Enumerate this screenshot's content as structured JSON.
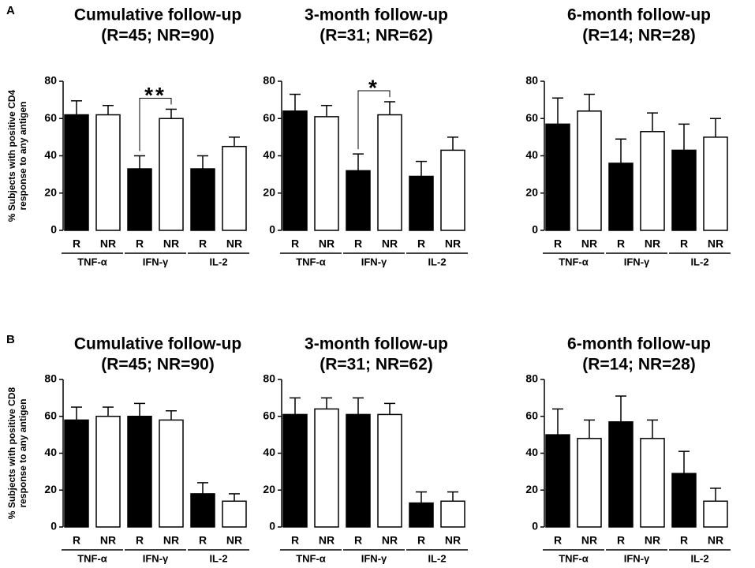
{
  "chart_data": [
    {
      "type": "bar",
      "panel": "A",
      "title": "Cumulative follow-up",
      "subtitle": "(R=45; NR=90)",
      "ylabel": [
        "% Subjects with positive CD4",
        "response to any antigen"
      ],
      "groups": [
        "TNF-α",
        "IFN-γ",
        "IL-2"
      ],
      "ylim": [
        0,
        80
      ],
      "yticks": [
        0,
        20,
        40,
        60,
        80
      ],
      "series": [
        {
          "name": "R",
          "color": "#000000",
          "values": [
            62,
            33,
            33
          ],
          "errors": [
            7.5,
            7,
            7
          ]
        },
        {
          "name": "NR",
          "color": "#ffffff",
          "values": [
            62,
            60,
            45
          ],
          "errors": [
            5,
            5,
            5
          ]
        }
      ],
      "annotation": {
        "text": "**",
        "group": "IFN-γ"
      }
    },
    {
      "type": "bar",
      "title": "3-month follow-up",
      "subtitle": "(R=31; NR=62)",
      "groups": [
        "TNF-α",
        "IFN-γ",
        "IL-2"
      ],
      "ylim": [
        0,
        80
      ],
      "yticks": [
        0,
        20,
        40,
        60,
        80
      ],
      "series": [
        {
          "name": "R",
          "color": "#000000",
          "values": [
            64,
            32,
            29
          ],
          "errors": [
            9,
            9,
            8
          ]
        },
        {
          "name": "NR",
          "color": "#ffffff",
          "values": [
            61,
            62,
            43
          ],
          "errors": [
            6,
            7,
            7
          ]
        }
      ],
      "annotation": {
        "text": "*",
        "group": "IFN-γ"
      }
    },
    {
      "type": "bar",
      "title": "6-month follow-up",
      "subtitle": "(R=14; NR=28)",
      "groups": [
        "TNF-α",
        "IFN-γ",
        "IL-2"
      ],
      "ylim": [
        0,
        80
      ],
      "yticks": [
        0,
        20,
        40,
        60,
        80
      ],
      "series": [
        {
          "name": "R",
          "color": "#000000",
          "values": [
            57,
            36,
            43
          ],
          "errors": [
            14,
            13,
            14
          ]
        },
        {
          "name": "NR",
          "color": "#ffffff",
          "values": [
            64,
            53,
            50
          ],
          "errors": [
            9,
            10,
            10
          ]
        }
      ]
    },
    {
      "type": "bar",
      "panel": "B",
      "title": "Cumulative follow-up",
      "subtitle": "(R=45; NR=90)",
      "ylabel": [
        "% Subjects with positive CD8",
        "response to any antigen"
      ],
      "groups": [
        "TNF-α",
        "IFN-γ",
        "IL-2"
      ],
      "ylim": [
        0,
        80
      ],
      "yticks": [
        0,
        20,
        40,
        60,
        80
      ],
      "series": [
        {
          "name": "R",
          "color": "#000000",
          "values": [
            58,
            60,
            18
          ],
          "errors": [
            7,
            7,
            6
          ]
        },
        {
          "name": "NR",
          "color": "#ffffff",
          "values": [
            60,
            58,
            14
          ],
          "errors": [
            5,
            5,
            4
          ]
        }
      ]
    },
    {
      "type": "bar",
      "title": "3-month follow-up",
      "subtitle": "(R=31; NR=62)",
      "groups": [
        "TNF-α",
        "IFN-γ",
        "IL-2"
      ],
      "ylim": [
        0,
        80
      ],
      "yticks": [
        0,
        20,
        40,
        60,
        80
      ],
      "series": [
        {
          "name": "R",
          "color": "#000000",
          "values": [
            61,
            61,
            13
          ],
          "errors": [
            9,
            9,
            6
          ]
        },
        {
          "name": "NR",
          "color": "#ffffff",
          "values": [
            64,
            61,
            14
          ],
          "errors": [
            6,
            6,
            5
          ]
        }
      ]
    },
    {
      "type": "bar",
      "title": "6-month follow-up",
      "subtitle": "(R=14; NR=28)",
      "groups": [
        "TNF-α",
        "IFN-γ",
        "IL-2"
      ],
      "ylim": [
        0,
        80
      ],
      "yticks": [
        0,
        20,
        40,
        60,
        80
      ],
      "series": [
        {
          "name": "R",
          "color": "#000000",
          "values": [
            50,
            57,
            29
          ],
          "errors": [
            14,
            14,
            12
          ]
        },
        {
          "name": "NR",
          "color": "#ffffff",
          "values": [
            48,
            48,
            14
          ],
          "errors": [
            10,
            10,
            7
          ]
        }
      ]
    }
  ]
}
